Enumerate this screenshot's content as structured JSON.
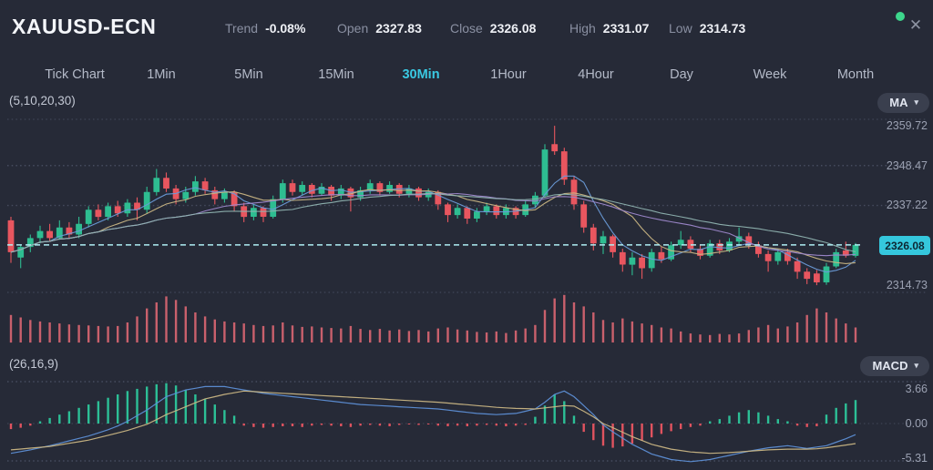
{
  "header": {
    "symbol": "XAUUSD-ECN",
    "stats": [
      {
        "label": "Trend",
        "value": "-0.08%"
      },
      {
        "label": "Open",
        "value": "2327.83"
      },
      {
        "label": "Close",
        "value": "2326.08"
      },
      {
        "label": "High",
        "value": "2331.07"
      },
      {
        "label": "Low",
        "value": "2314.73"
      }
    ],
    "connection_dot_color": "#3dd68c"
  },
  "icons": {
    "close": "✕",
    "chevron_down": "▾"
  },
  "tabs": [
    {
      "label": "Tick Chart",
      "active": false
    },
    {
      "label": "1Min",
      "active": false
    },
    {
      "label": "5Min",
      "active": false
    },
    {
      "label": "15Min",
      "active": false
    },
    {
      "label": "30Min",
      "active": true
    },
    {
      "label": "1Hour",
      "active": false
    },
    {
      "label": "4Hour",
      "active": false
    },
    {
      "label": "Day",
      "active": false
    },
    {
      "label": "Week",
      "active": false
    },
    {
      "label": "Month",
      "active": false
    }
  ],
  "active_tab": "30Min",
  "main_chart": {
    "params_label": "(5,10,20,30)",
    "indicator_button": "MA",
    "axis_labels": [
      "2359.72",
      "2348.47",
      "2337.22",
      "2314.73"
    ],
    "price_tag": "2326.08"
  },
  "macd_panel": {
    "params_label": "(26,16,9)",
    "indicator_button": "MACD",
    "axis_labels": [
      "3.66",
      "0.00",
      "-5.31"
    ]
  },
  "chart_data": {
    "type": "candlestick",
    "symbol": "XAUUSD-ECN",
    "timeframe": "30Min",
    "y_axis": {
      "ticks": [
        2359.72,
        2348.47,
        2337.22,
        2326.08,
        2314.73
      ],
      "top": 2359.72,
      "bottom": 2314.73
    },
    "current_price": 2326.08,
    "ma_periods": [
      5,
      10,
      20,
      30
    ],
    "colors": {
      "accent_cyan": "#3ac9e2",
      "candle_up": "#2ebd91",
      "candle_down": "#e8565f",
      "volume": "#c9606c",
      "macd_up": "#2cbf96",
      "macd_down": "#e0535f",
      "ma": [
        "#6a9bd8",
        "#c9b583",
        "#9e88cc",
        "#8fb3b0"
      ],
      "dif_line": "#5d8fd6",
      "dea_line": "#c9b583",
      "grid": "#4c5266",
      "dashed_price_line": "#aeeef4",
      "price_tag_bg": "#35c7dd"
    },
    "candles": [
      [
        2333,
        2334,
        2321,
        2324
      ],
      [
        2322.5,
        2326,
        2319.5,
        2325.5
      ],
      [
        2325.5,
        2329,
        2324,
        2328
      ],
      [
        2328,
        2331.5,
        2326.5,
        2330
      ],
      [
        2330,
        2332,
        2327,
        2328
      ],
      [
        2328,
        2333,
        2327.5,
        2331
      ],
      [
        2331,
        2332.5,
        2328,
        2329
      ],
      [
        2329,
        2334,
        2328,
        2332
      ],
      [
        2332,
        2337,
        2331,
        2336
      ],
      [
        2336,
        2337.5,
        2333,
        2334
      ],
      [
        2334,
        2338,
        2333,
        2337
      ],
      [
        2337,
        2338.5,
        2334,
        2335
      ],
      [
        2335,
        2339,
        2334,
        2338
      ],
      [
        2338,
        2339.5,
        2333,
        2336
      ],
      [
        2336,
        2342.5,
        2335,
        2341
      ],
      [
        2341,
        2347.5,
        2340,
        2345
      ],
      [
        2345,
        2346.5,
        2341,
        2342
      ],
      [
        2342,
        2343,
        2337.5,
        2339
      ],
      [
        2339,
        2342.5,
        2338,
        2341
      ],
      [
        2341,
        2345.5,
        2340,
        2344
      ],
      [
        2344,
        2345,
        2340.5,
        2341.5
      ],
      [
        2341.5,
        2342.5,
        2337.5,
        2339
      ],
      [
        2339,
        2342,
        2338,
        2341
      ],
      [
        2341,
        2341.5,
        2335.5,
        2337
      ],
      [
        2337,
        2338,
        2332.5,
        2334
      ],
      [
        2334,
        2337.5,
        2333,
        2336.5
      ],
      [
        2336.5,
        2337,
        2332.5,
        2334
      ],
      [
        2334,
        2340,
        2333.5,
        2339
      ],
      [
        2339,
        2344.5,
        2338,
        2343.5
      ],
      [
        2343.5,
        2344.5,
        2340,
        2341
      ],
      [
        2341,
        2344,
        2340,
        2343
      ],
      [
        2343,
        2343.5,
        2339.5,
        2340.5
      ],
      [
        2340.5,
        2343.5,
        2340,
        2342.5
      ],
      [
        2342.5,
        2343,
        2338.5,
        2340
      ],
      [
        2340,
        2343,
        2339,
        2342
      ],
      [
        2342,
        2342.5,
        2335.5,
        2339.5
      ],
      [
        2339.5,
        2342.5,
        2338.5,
        2341.5
      ],
      [
        2341.5,
        2344.5,
        2340.5,
        2343.5
      ],
      [
        2343.5,
        2344,
        2340,
        2341
      ],
      [
        2341,
        2344,
        2340.5,
        2343
      ],
      [
        2343,
        2343.5,
        2339.5,
        2340.5
      ],
      [
        2340.5,
        2343,
        2339.5,
        2342
      ],
      [
        2342,
        2342.5,
        2338.5,
        2339.5
      ],
      [
        2339.5,
        2342,
        2338.5,
        2341
      ],
      [
        2341,
        2341.5,
        2336,
        2337.5
      ],
      [
        2337.5,
        2338,
        2332.5,
        2334.5
      ],
      [
        2334.5,
        2337.5,
        2333.5,
        2336.5
      ],
      [
        2336.5,
        2337,
        2332,
        2333.5
      ],
      [
        2333.5,
        2336.5,
        2332.5,
        2335.5
      ],
      [
        2335.5,
        2338,
        2334.5,
        2337
      ],
      [
        2337,
        2337.5,
        2333.5,
        2334.5
      ],
      [
        2334.5,
        2337.5,
        2333.5,
        2336.5
      ],
      [
        2336.5,
        2337,
        2333.5,
        2334.5
      ],
      [
        2334.5,
        2338.5,
        2334,
        2337.5
      ],
      [
        2337.5,
        2341,
        2336.5,
        2340
      ],
      [
        2340,
        2354.5,
        2339.5,
        2353
      ],
      [
        2354.5,
        2359.7,
        2351.5,
        2352.5
      ],
      [
        2352.5,
        2353.5,
        2343,
        2344.5
      ],
      [
        2344.5,
        2345.5,
        2336,
        2337.5
      ],
      [
        2337.5,
        2338.5,
        2329.5,
        2331
      ],
      [
        2331,
        2332,
        2324.5,
        2326.5
      ],
      [
        2326.5,
        2330,
        2323.5,
        2328.5
      ],
      [
        2328.5,
        2329,
        2322.5,
        2324
      ],
      [
        2324,
        2325,
        2318.5,
        2320.5
      ],
      [
        2320.5,
        2324,
        2317.5,
        2322.5
      ],
      [
        2322.5,
        2323.5,
        2316.5,
        2319.5
      ],
      [
        2319.5,
        2325,
        2318.5,
        2324
      ],
      [
        2324,
        2325.5,
        2321,
        2322
      ],
      [
        2322,
        2327,
        2321.5,
        2326
      ],
      [
        2326,
        2330,
        2325,
        2327.5
      ],
      [
        2327.5,
        2328.5,
        2324,
        2325
      ],
      [
        2325,
        2326,
        2322,
        2323
      ],
      [
        2323,
        2327.5,
        2322.5,
        2326.5
      ],
      [
        2326.5,
        2327.5,
        2323.5,
        2324.5
      ],
      [
        2324.5,
        2328,
        2324,
        2327
      ],
      [
        2327,
        2331,
        2326,
        2328.5
      ],
      [
        2328.5,
        2329.5,
        2325,
        2326
      ],
      [
        2326,
        2327,
        2322.5,
        2323.5
      ],
      [
        2323.5,
        2324.5,
        2318.5,
        2321.5
      ],
      [
        2321.5,
        2325,
        2320.5,
        2324
      ],
      [
        2324,
        2325,
        2320.5,
        2321.5
      ],
      [
        2321.5,
        2322.5,
        2316.5,
        2318.5
      ],
      [
        2318.5,
        2319.5,
        2315,
        2316.5
      ],
      [
        2318,
        2319,
        2314.7,
        2315.5
      ],
      [
        2315.5,
        2321,
        2314.8,
        2320
      ],
      [
        2320,
        2325,
        2319.5,
        2324
      ],
      [
        2324.5,
        2327,
        2322.5,
        2323
      ],
      [
        2323,
        2326.6,
        2322.5,
        2326.08
      ]
    ],
    "volume": [
      55,
      50,
      45,
      42,
      40,
      38,
      36,
      35,
      34,
      33,
      32,
      33,
      40,
      52,
      68,
      80,
      92,
      85,
      72,
      60,
      52,
      46,
      42,
      40,
      38,
      35,
      33,
      34,
      40,
      34,
      31,
      32,
      30,
      29,
      28,
      33,
      27,
      25,
      27,
      24,
      26,
      23,
      25,
      22,
      28,
      30,
      26,
      24,
      21,
      20,
      22,
      19,
      24,
      28,
      35,
      65,
      88,
      95,
      80,
      72,
      60,
      45,
      40,
      48,
      42,
      38,
      35,
      30,
      28,
      22,
      18,
      16,
      15,
      17,
      16,
      18,
      25,
      30,
      35,
      28,
      32,
      40,
      55,
      68,
      60,
      48,
      38,
      30
    ],
    "macd": {
      "params": [
        26,
        16,
        9
      ],
      "y_ticks": [
        3.66,
        0.0,
        -5.31
      ],
      "hist": [
        -0.8,
        -0.6,
        -0.3,
        0.2,
        0.5,
        0.8,
        1.1,
        1.4,
        1.7,
        2.0,
        2.3,
        2.6,
        2.9,
        3.1,
        3.3,
        3.5,
        3.6,
        3.4,
        3.0,
        2.6,
        2.2,
        1.7,
        1.2,
        0.7,
        -0.3,
        -0.5,
        -0.6,
        -0.5,
        -0.4,
        -0.4,
        -0.5,
        -0.3,
        -0.2,
        -0.3,
        -0.4,
        -0.5,
        -0.3,
        -0.2,
        -0.3,
        -0.4,
        -0.2,
        -0.1,
        -0.2,
        -0.1,
        -0.3,
        -0.4,
        -0.3,
        -0.4,
        -0.3,
        -0.2,
        -0.3,
        -0.4,
        -0.3,
        -0.2,
        0.6,
        1.6,
        2.6,
        2.0,
        0.7,
        -1.2,
        -2.4,
        -3.2,
        -3.5,
        -3.3,
        -2.9,
        -2.5,
        -2.0,
        -1.5,
        -1.1,
        -0.8,
        -0.5,
        -0.3,
        0.2,
        0.4,
        0.7,
        1.0,
        1.2,
        1.0,
        0.7,
        0.4,
        0.2,
        -0.3,
        -0.5,
        -0.4,
        0.8,
        1.4,
        1.8,
        2.1
      ],
      "dif": [
        -4.3,
        -4.05,
        -3.8,
        -3.5,
        -3.2,
        -2.85,
        -2.5,
        -2.15,
        -1.8,
        -1.35,
        -0.9,
        -0.35,
        0.2,
        0.7,
        1.2,
        1.8,
        2.4,
        2.7,
        3.0,
        3.15,
        3.3,
        3.3,
        3.3,
        3.15,
        3.0,
        2.85,
        2.7,
        2.6,
        2.5,
        2.4,
        2.3,
        2.2,
        2.1,
        2.0,
        1.9,
        1.8,
        1.7,
        1.65,
        1.6,
        1.55,
        1.5,
        1.45,
        1.4,
        1.35,
        1.3,
        1.2,
        1.1,
        1.0,
        0.9,
        0.85,
        0.8,
        0.85,
        0.9,
        1.1,
        1.3,
        1.9,
        2.6,
        2.9,
        2.4,
        1.6,
        0.8,
        -0.2,
        -1.2,
        -2.1,
        -3.0,
        -3.7,
        -4.4,
        -4.8,
        -5.2,
        -5.35,
        -5.5,
        -5.35,
        -5.2,
        -4.9,
        -4.6,
        -4.3,
        -4.0,
        -3.75,
        -3.5,
        -3.35,
        -3.2,
        -3.4,
        -3.6,
        -3.4,
        -3.2,
        -2.7,
        -2.2,
        -1.6
      ],
      "dea": [
        -3.8,
        -3.68,
        -3.55,
        -3.43,
        -3.3,
        -3.08,
        -2.85,
        -2.63,
        -2.4,
        -2.05,
        -1.7,
        -1.35,
        -1.0,
        -0.55,
        -0.1,
        0.35,
        0.8,
        1.15,
        1.5,
        1.85,
        2.2,
        2.4,
        2.6,
        2.75,
        2.9,
        2.85,
        2.8,
        2.75,
        2.7,
        2.65,
        2.6,
        2.55,
        2.5,
        2.45,
        2.4,
        2.35,
        2.3,
        2.25,
        2.2,
        2.15,
        2.1,
        2.05,
        2.0,
        1.95,
        1.9,
        1.83,
        1.75,
        1.68,
        1.6,
        1.53,
        1.45,
        1.4,
        1.35,
        1.33,
        1.3,
        1.4,
        1.5,
        1.6,
        1.55,
        1.1,
        0.6,
        0.0,
        -0.6,
        -1.25,
        -1.9,
        -2.45,
        -3.0,
        -3.35,
        -3.7,
        -3.9,
        -4.1,
        -4.2,
        -4.3,
        -4.25,
        -4.2,
        -4.1,
        -4.0,
        -3.9,
        -3.8,
        -3.75,
        -3.7,
        -3.7,
        -3.7,
        -3.65,
        -3.5,
        -3.3,
        -3.1,
        -2.9
      ]
    }
  }
}
